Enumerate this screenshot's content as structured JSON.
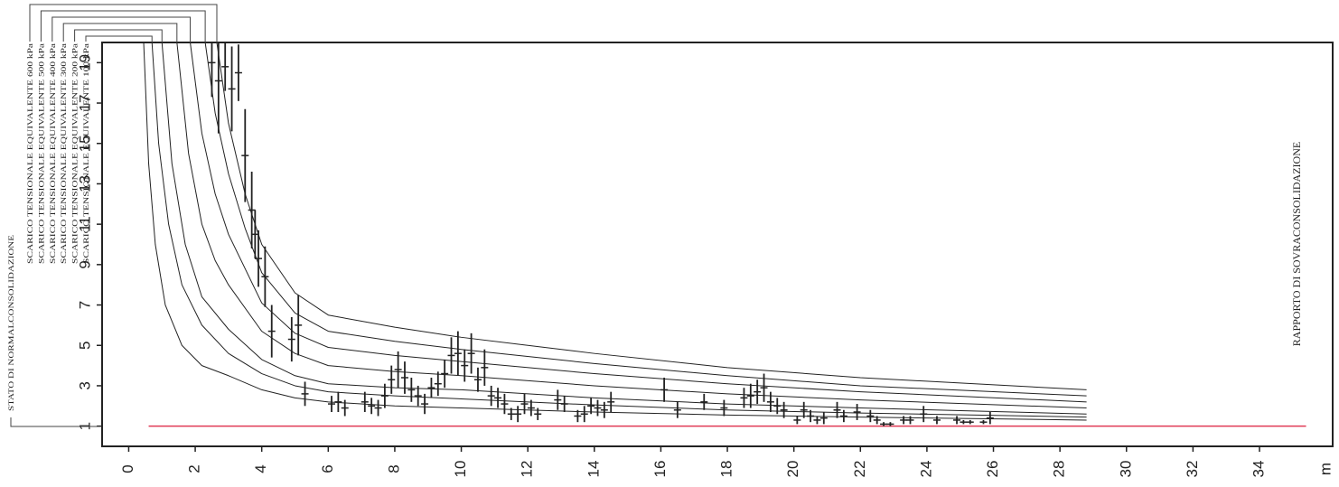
{
  "chart_data": {
    "type": "line",
    "title": "RAPPORTO DI SOVRACONSOLIDAZIONE",
    "xlabel": "m",
    "xlim": [
      -0.8,
      36.2
    ],
    "ylim": [
      0,
      20
    ],
    "xticks": [
      0,
      2,
      4,
      6,
      8,
      10,
      12,
      14,
      16,
      18,
      20,
      22,
      24,
      26,
      28,
      30,
      32,
      34
    ],
    "yticks": [
      1,
      3,
      5,
      7,
      9,
      11,
      13,
      15,
      17,
      19
    ],
    "grid": false,
    "series": [
      {
        "name": "STATO DI NORMALCONSOLIDAZIONE",
        "color": "#222222",
        "x": [
          0.45,
          0.6,
          0.8,
          1.1,
          1.6,
          2.2,
          3,
          4,
          5,
          6,
          8,
          10,
          14,
          18,
          22,
          28.8
        ],
        "values": [
          20,
          14,
          10,
          7,
          5,
          4,
          3.5,
          2.8,
          2.4,
          2.2,
          2.0,
          1.9,
          1.7,
          1.55,
          1.45,
          1.3
        ]
      },
      {
        "name": "SCARICO TENSIONALE EQUIVALENTE 600 kPa",
        "color": "#222222",
        "x": [
          2.65,
          3,
          3.5,
          4,
          5,
          6,
          8,
          10,
          14,
          18,
          22,
          28.8
        ],
        "values": [
          20,
          16,
          12.5,
          10,
          7.6,
          6.5,
          5.9,
          5.4,
          4.6,
          3.9,
          3.4,
          2.8
        ]
      },
      {
        "name": "SCARICO TENSIONALE EQUIVALENTE 500 kPa",
        "color": "#222222",
        "x": [
          2.3,
          2.6,
          3,
          3.5,
          4,
          5,
          6,
          8,
          10,
          14,
          18,
          22,
          28.8
        ],
        "values": [
          20,
          16.5,
          13.5,
          10.8,
          8.6,
          6.6,
          5.7,
          5.2,
          4.8,
          4.1,
          3.5,
          3.0,
          2.5
        ]
      },
      {
        "name": "SCARICO TENSIONALE EQUIVALENTE 400 kPa",
        "color": "#222222",
        "x": [
          1.85,
          2.2,
          2.6,
          3,
          4,
          5,
          6,
          8,
          10,
          14,
          18,
          22,
          28.8
        ],
        "values": [
          20,
          15.5,
          12.5,
          10.5,
          7.1,
          5.6,
          4.9,
          4.5,
          4.2,
          3.6,
          3.1,
          2.7,
          2.2
        ]
      },
      {
        "name": "SCARICO TENSIONALE EQUIVALENTE 300 kPa",
        "color": "#222222",
        "x": [
          1.45,
          1.8,
          2.2,
          2.6,
          3,
          4,
          5,
          6,
          8,
          10,
          14,
          18,
          22,
          28.8
        ],
        "values": [
          20,
          14.5,
          11,
          9.2,
          8,
          5.7,
          4.6,
          4.0,
          3.7,
          3.5,
          3.0,
          2.6,
          2.3,
          1.9
        ]
      },
      {
        "name": "SCARICO TENSIONALE EQUIVALENTE 200 kPa",
        "color": "#222222",
        "x": [
          1.0,
          1.3,
          1.7,
          2.2,
          3,
          4,
          5,
          6,
          8,
          10,
          14,
          18,
          22,
          28.8
        ],
        "values": [
          20,
          14,
          10,
          7.4,
          5.8,
          4.3,
          3.5,
          3.1,
          2.9,
          2.8,
          2.4,
          2.1,
          1.9,
          1.6
        ]
      },
      {
        "name": "SCARICO TENSIONALE EQUIVALENTE 100 kPa",
        "color": "#222222",
        "x": [
          0.7,
          0.9,
          1.2,
          1.6,
          2.2,
          3,
          4,
          5,
          6,
          8,
          10,
          14,
          18,
          22,
          28.8
        ],
        "values": [
          20,
          15,
          11,
          8,
          6,
          4.6,
          3.6,
          3.0,
          2.7,
          2.5,
          2.35,
          2.05,
          1.8,
          1.65,
          1.45
        ]
      }
    ],
    "points": {
      "color": "#222222",
      "x": [
        2.5,
        2.7,
        2.9,
        3.1,
        3.3,
        3.5,
        3.7,
        3.8,
        3.9,
        4.1,
        4.3,
        4.9,
        5.1,
        5.3,
        6.1,
        6.3,
        6.5,
        7.1,
        7.3,
        7.5,
        7.7,
        7.9,
        8.1,
        8.3,
        8.5,
        8.7,
        8.9,
        9.1,
        9.3,
        9.5,
        9.7,
        9.9,
        10.1,
        10.3,
        10.5,
        10.7,
        10.9,
        11.1,
        11.3,
        11.5,
        11.7,
        11.9,
        12.1,
        12.3,
        12.9,
        13.1,
        13.5,
        13.7,
        13.9,
        14.1,
        14.3,
        14.5,
        16.1,
        16.5,
        17.3,
        17.9,
        18.5,
        18.7,
        18.9,
        19.1,
        19.3,
        19.5,
        19.7,
        20.1,
        20.3,
        20.5,
        20.7,
        20.9,
        21.3,
        21.5,
        21.9,
        22.3,
        22.5,
        22.7,
        22.9,
        23.3,
        23.5,
        23.9,
        24.3,
        24.9,
        25.1,
        25.3,
        25.7,
        25.9
      ],
      "values": [
        19,
        18.1,
        18.8,
        17.7,
        18.5,
        14.4,
        11.7,
        10.5,
        9.3,
        8.4,
        5.7,
        5.3,
        6.0,
        2.6,
        2.1,
        2.2,
        1.9,
        2.2,
        2.0,
        1.9,
        2.5,
        3.3,
        3.8,
        3.4,
        2.8,
        2.5,
        2.1,
        2.9,
        3.1,
        3.6,
        4.5,
        4.6,
        4.0,
        4.6,
        3.3,
        3.9,
        2.5,
        2.4,
        2.1,
        1.6,
        1.6,
        2.1,
        1.9,
        1.6,
        2.3,
        2.1,
        1.5,
        1.6,
        2.0,
        1.9,
        1.8,
        2.2,
        2.8,
        1.8,
        2.2,
        1.9,
        2.4,
        2.5,
        2.7,
        2.9,
        2.2,
        2.0,
        1.8,
        1.3,
        1.8,
        1.5,
        1.3,
        1.4,
        1.8,
        1.5,
        1.7,
        1.5,
        1.3,
        1.1,
        1.1,
        1.3,
        1.3,
        1.6,
        1.3,
        1.3,
        1.2,
        1.2,
        1.2,
        1.4
      ],
      "errors": [
        1.7,
        2.6,
        1.2,
        2.1,
        1.4,
        2.3,
        1.9,
        1.2,
        1.4,
        1.5,
        1.3,
        1.1,
        1.5,
        0.6,
        0.4,
        0.5,
        0.4,
        0.5,
        0.4,
        0.4,
        0.6,
        0.7,
        0.9,
        0.8,
        0.6,
        0.5,
        0.5,
        0.5,
        0.6,
        0.7,
        0.9,
        1.1,
        0.8,
        1.0,
        0.6,
        0.9,
        0.5,
        0.5,
        0.5,
        0.3,
        0.4,
        0.5,
        0.4,
        0.3,
        0.5,
        0.4,
        0.3,
        0.4,
        0.4,
        0.4,
        0.4,
        0.5,
        0.6,
        0.4,
        0.4,
        0.4,
        0.5,
        0.6,
        0.6,
        0.7,
        0.5,
        0.4,
        0.4,
        0.2,
        0.4,
        0.3,
        0.2,
        0.3,
        0.4,
        0.3,
        0.4,
        0.3,
        0.2,
        0.1,
        0.1,
        0.2,
        0.2,
        0.4,
        0.2,
        0.2,
        0.1,
        0.1,
        0.1,
        0.3
      ]
    },
    "reference_line": {
      "value": 1,
      "x": [
        0.6,
        35.4
      ],
      "color": "#e03a55"
    }
  }
}
